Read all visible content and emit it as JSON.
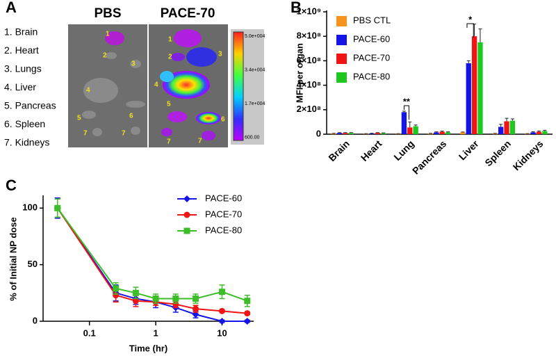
{
  "figure_a": {
    "panel_label": "A",
    "column_titles": [
      "PBS",
      "PACE-70"
    ],
    "organ_list": [
      "1.  Brain",
      "2.  Heart",
      "3.  Lungs",
      "4.  Liver",
      "5.  Pancreas",
      "6.  Spleen",
      "7.  Kidneys"
    ],
    "pbs_numbers": [
      "1",
      "2",
      "3",
      "4",
      "5",
      "6",
      "7",
      "7"
    ],
    "pace_numbers": [
      "1",
      "2",
      "3",
      "4",
      "5",
      "6",
      "7",
      "7"
    ],
    "colorbar_labels": [
      "5.0e+004",
      "3.4e+004",
      "1.7e+004",
      "600.00"
    ]
  },
  "chart_data": [
    {
      "type": "bar",
      "panel_label": "B",
      "y_label": "MFI per organ",
      "categories": [
        "Brain",
        "Heart",
        "Lung",
        "Pancreas",
        "Liver",
        "Spleen",
        "Kidneys"
      ],
      "ylim": [
        0,
        1000000000
      ],
      "yticks": [
        0,
        {
          "value": 200000000,
          "label": "2×10⁸"
        },
        {
          "value": 400000000,
          "label": "4×10⁸"
        },
        {
          "value": 600000000,
          "label": "6×10⁸"
        },
        {
          "value": 800000000,
          "label": "8×10⁸"
        },
        {
          "value": 1000000000,
          "label": "1×10⁹"
        }
      ],
      "annotations": [
        "**",
        "*"
      ],
      "legend": "upper left",
      "series": [
        {
          "name": "PBS CTL",
          "color": "#f7941d",
          "values": [
            5000000,
            3000000,
            3000000,
            5000000,
            15000000,
            5000000,
            3000000
          ],
          "errors": [
            2000000,
            2000000,
            2000000,
            2000000,
            3000000,
            2000000,
            2000000
          ]
        },
        {
          "name": "PACE-60",
          "color": "#1414e6",
          "values": [
            10000000,
            5000000,
            180000000,
            15000000,
            580000000,
            60000000,
            15000000
          ],
          "errors": [
            3000000,
            3000000,
            8000000,
            4000000,
            20000000,
            20000000,
            5000000
          ]
        },
        {
          "name": "PACE-70",
          "color": "#f01414",
          "values": [
            10000000,
            10000000,
            55000000,
            20000000,
            800000000,
            105000000,
            20000000
          ],
          "errors": [
            3000000,
            3000000,
            45000000,
            5000000,
            100000000,
            25000000,
            6000000
          ]
        },
        {
          "name": "PACE-80",
          "color": "#1ec81e",
          "values": [
            10000000,
            8000000,
            65000000,
            15000000,
            750000000,
            110000000,
            25000000
          ],
          "errors": [
            3000000,
            3000000,
            10000000,
            4000000,
            110000000,
            15000000,
            7000000
          ]
        }
      ]
    },
    {
      "type": "line",
      "panel_label": "C",
      "x_label": "Time (hr)",
      "y_label": "% of Initial NP dose",
      "xlog": true,
      "xlim": [
        0.02,
        30
      ],
      "xticks": [
        0.1,
        1,
        10
      ],
      "ylim": [
        0,
        110
      ],
      "yticks": [
        0,
        50,
        100
      ],
      "legend": "upper right",
      "x": [
        0.033,
        0.25,
        0.5,
        1,
        2,
        4,
        10,
        24
      ],
      "series": [
        {
          "name": "PACE-60",
          "color": "#1414e6",
          "marker": "diamond",
          "values": [
            100,
            25,
            20,
            17,
            12,
            6,
            0,
            0
          ],
          "errors": [
            9,
            7,
            5,
            5,
            4,
            3,
            1,
            1
          ]
        },
        {
          "name": "PACE-70",
          "color": "#f01414",
          "marker": "circle",
          "values": [
            100,
            23,
            18,
            17,
            15,
            11,
            9,
            7
          ],
          "errors": [
            8,
            6,
            5,
            3,
            3,
            3,
            1,
            1
          ]
        },
        {
          "name": "PACE-80",
          "color": "#3cbe28",
          "marker": "square",
          "values": [
            100,
            29,
            25,
            20,
            20,
            20,
            26,
            18
          ],
          "errors": [
            8,
            5,
            5,
            4,
            4,
            4,
            6,
            5
          ]
        }
      ]
    }
  ]
}
